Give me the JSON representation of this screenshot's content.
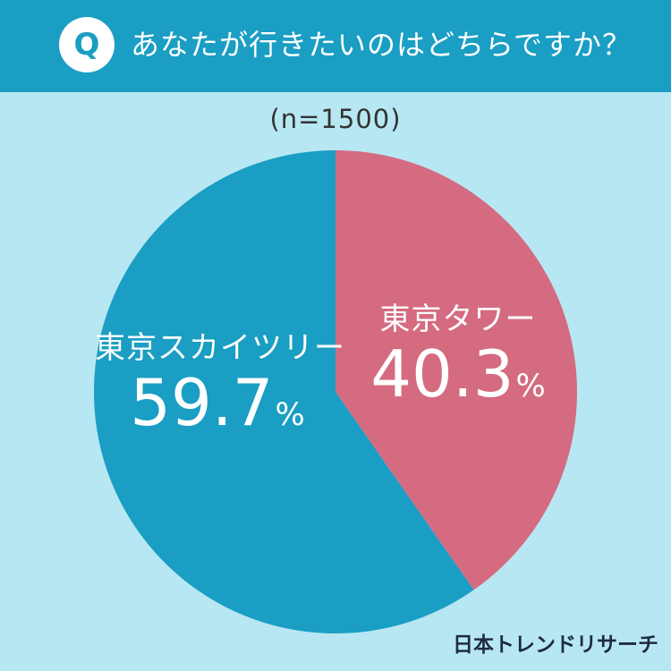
{
  "header": {
    "badge": "Q",
    "question": "あなたが行きたいのはどちらですか？"
  },
  "sample_size": "(n=1500)",
  "chart_data": {
    "type": "pie",
    "title": "あなたが行きたいのはどちらですか？",
    "subtitle": "(n=1500)",
    "unit": "%",
    "slices": [
      {
        "label": "東京タワー",
        "value": 40.3,
        "color": "#d56b80",
        "text_color": "#ffffff"
      },
      {
        "label": "東京スカイツリー",
        "value": 59.7,
        "color": "#1a9ec3",
        "text_color": "#ffffff"
      }
    ],
    "start_angle": "12 o'clock",
    "direction": "clockwise"
  },
  "labels": {
    "tower_name": "東京タワー",
    "tower_value": "40.3",
    "skytree_name": "東京スカイツリー",
    "skytree_value": "59.7",
    "percent_unit": "%"
  },
  "credit": "日本トレンドリサーチ",
  "colors": {
    "background": "#b7e7f3",
    "header": "#1a9ec3",
    "badge_text": "#1a9ec3",
    "credit_text": "#1d2b43"
  }
}
